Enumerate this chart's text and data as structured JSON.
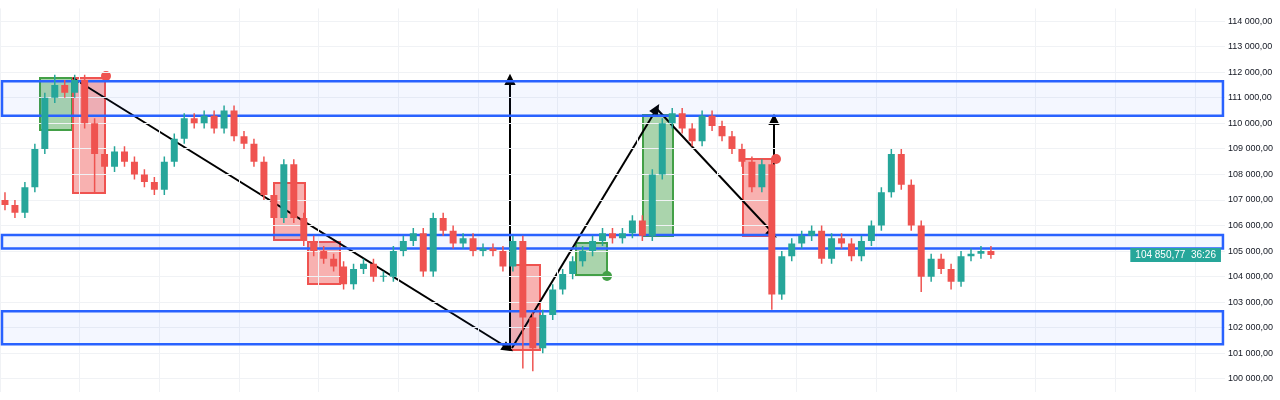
{
  "chart_data": {
    "type": "candlestick",
    "categories": [
      null,
      null,
      null,
      null,
      null,
      null,
      null,
      null,
      null,
      null,
      null,
      null,
      null,
      null,
      null,
      null,
      null,
      null,
      null,
      null,
      null,
      null,
      null,
      null,
      null,
      null,
      null,
      null,
      null,
      null,
      null,
      null,
      null,
      null,
      null,
      null,
      null,
      null,
      null,
      null,
      null,
      null,
      null,
      null,
      null,
      null,
      null,
      null,
      null,
      null,
      null,
      null,
      null,
      null,
      null,
      null,
      null,
      null,
      null,
      null,
      null,
      null,
      null,
      null,
      null,
      null,
      null,
      null,
      null,
      null,
      null,
      null,
      null,
      null,
      null,
      null,
      null,
      null,
      null,
      null,
      null,
      null,
      null,
      null,
      null,
      null,
      null,
      null,
      null,
      null,
      null,
      null,
      null,
      null,
      null,
      null,
      null,
      null,
      null,
      null,
      null,
      null,
      null,
      null,
      null,
      null,
      null,
      null,
      null,
      null,
      null,
      null,
      null,
      null,
      null,
      null,
      null,
      null,
      null,
      null,
      null,
      null,
      null
    ],
    "ohlc": [
      [
        107000,
        107300,
        106600,
        106800
      ],
      [
        106800,
        107000,
        106300,
        106500
      ],
      [
        106500,
        107700,
        106300,
        107500
      ],
      [
        107500,
        109200,
        107300,
        109000
      ],
      [
        109000,
        111200,
        108800,
        111000
      ],
      [
        111000,
        111900,
        110800,
        111500
      ],
      [
        111500,
        111700,
        111000,
        111200
      ],
      [
        111200,
        111900,
        111000,
        111700
      ],
      [
        111700,
        111900,
        109800,
        110000
      ],
      [
        110000,
        110200,
        107300,
        108800
      ],
      [
        108800,
        109000,
        108100,
        108300
      ],
      [
        108300,
        109100,
        108100,
        108900
      ],
      [
        108900,
        109100,
        108300,
        108500
      ],
      [
        108500,
        108700,
        107800,
        108000
      ],
      [
        108000,
        108200,
        107500,
        107700
      ],
      [
        107700,
        107900,
        107200,
        107400
      ],
      [
        107400,
        108700,
        107200,
        108500
      ],
      [
        108500,
        109600,
        108300,
        109400
      ],
      [
        109400,
        110400,
        109200,
        110200
      ],
      [
        110200,
        110400,
        109800,
        110000
      ],
      [
        110000,
        110500,
        109800,
        110300
      ],
      [
        110300,
        110500,
        109600,
        109800
      ],
      [
        109800,
        110700,
        109600,
        110500
      ],
      [
        110500,
        110700,
        109300,
        109500
      ],
      [
        109500,
        109700,
        109000,
        109200
      ],
      [
        109200,
        109400,
        108300,
        108500
      ],
      [
        108500,
        108700,
        107000,
        107200
      ],
      [
        107200,
        107400,
        106100,
        106300
      ],
      [
        106300,
        108600,
        106100,
        108400
      ],
      [
        108400,
        108600,
        106100,
        106300
      ],
      [
        106300,
        106500,
        105200,
        105400
      ],
      [
        105400,
        105600,
        104800,
        105000
      ],
      [
        105000,
        105200,
        104500,
        104700
      ],
      [
        104700,
        104900,
        104200,
        104400
      ],
      [
        104400,
        104600,
        103500,
        103700
      ],
      [
        103700,
        104500,
        103500,
        104300
      ],
      [
        104300,
        104700,
        104100,
        104500
      ],
      [
        104500,
        104700,
        103800,
        104000
      ],
      [
        104000,
        104200,
        103800,
        104000
      ],
      [
        104000,
        105200,
        103800,
        105000
      ],
      [
        105000,
        105600,
        104800,
        105400
      ],
      [
        105400,
        105900,
        105200,
        105700
      ],
      [
        105700,
        105900,
        104000,
        104200
      ],
      [
        104200,
        106500,
        104000,
        106300
      ],
      [
        106300,
        106500,
        105600,
        105800
      ],
      [
        105800,
        106000,
        105100,
        105300
      ],
      [
        105300,
        105700,
        105100,
        105500
      ],
      [
        105500,
        105700,
        104800,
        105000
      ],
      [
        105000,
        105300,
        104800,
        105100
      ],
      [
        105100,
        105300,
        104800,
        105000
      ],
      [
        105000,
        105200,
        104200,
        104400
      ],
      [
        104400,
        105600,
        104200,
        105400
      ],
      [
        105400,
        105600,
        100400,
        102400
      ],
      [
        102400,
        102600,
        100300,
        101200
      ],
      [
        101200,
        102700,
        101000,
        102500
      ],
      [
        102500,
        103700,
        102300,
        103500
      ],
      [
        103500,
        104300,
        103300,
        104100
      ],
      [
        104100,
        104800,
        103900,
        104600
      ],
      [
        104600,
        105200,
        104400,
        105000
      ],
      [
        105000,
        105600,
        104800,
        105400
      ],
      [
        105400,
        105900,
        105200,
        105700
      ],
      [
        105700,
        105900,
        105300,
        105500
      ],
      [
        105500,
        105900,
        105300,
        105700
      ],
      [
        105700,
        106400,
        105500,
        106200
      ],
      [
        106200,
        106400,
        105400,
        105600
      ],
      [
        105600,
        108200,
        105400,
        108000
      ],
      [
        108000,
        110200,
        107800,
        110000
      ],
      [
        110000,
        110600,
        109800,
        110400
      ],
      [
        110400,
        110600,
        109600,
        109800
      ],
      [
        109800,
        110000,
        109100,
        109300
      ],
      [
        109300,
        110500,
        109100,
        110300
      ],
      [
        110300,
        110500,
        109700,
        109900
      ],
      [
        109900,
        110100,
        109300,
        109500
      ],
      [
        109500,
        109700,
        108800,
        109000
      ],
      [
        109000,
        109200,
        108300,
        108500
      ],
      [
        108500,
        108700,
        107300,
        107500
      ],
      [
        107500,
        108600,
        107300,
        108400
      ],
      [
        108400,
        108600,
        102700,
        103300
      ],
      [
        103300,
        105000,
        103100,
        104800
      ],
      [
        104800,
        105500,
        104600,
        105300
      ],
      [
        105300,
        105800,
        105100,
        105600
      ],
      [
        105600,
        106000,
        105400,
        105800
      ],
      [
        105800,
        106000,
        104500,
        104700
      ],
      [
        104700,
        105700,
        104500,
        105500
      ],
      [
        105500,
        105700,
        105100,
        105300
      ],
      [
        105300,
        105500,
        104600,
        104800
      ],
      [
        104800,
        105600,
        104600,
        105400
      ],
      [
        105400,
        106200,
        105200,
        106000
      ],
      [
        106000,
        107500,
        105800,
        107300
      ],
      [
        107300,
        109000,
        107100,
        108800
      ],
      [
        108800,
        109000,
        107400,
        107600
      ],
      [
        107600,
        107800,
        105800,
        106000
      ],
      [
        106000,
        106200,
        103400,
        104000
      ],
      [
        104000,
        104900,
        103800,
        104700
      ],
      [
        104700,
        104900,
        104100,
        104300
      ],
      [
        104300,
        104500,
        103500,
        103800
      ],
      [
        103800,
        105000,
        103600,
        104800
      ],
      [
        104800,
        105100,
        104600,
        104900
      ],
      [
        104900,
        105200,
        104700,
        105000
      ],
      [
        105000,
        105200,
        104700,
        104850
      ],
      null,
      null,
      null,
      null,
      null,
      null,
      null,
      null,
      null,
      null,
      null,
      null,
      null,
      null,
      null,
      null,
      null,
      null,
      null,
      null,
      null,
      null,
      null
    ],
    "ylim": [
      99500,
      114500
    ],
    "yticks": [
      {
        "value": 100000,
        "label": "100 000,00"
      },
      {
        "value": 101000,
        "label": "101 000,00"
      },
      {
        "value": 102000,
        "label": "102 000,00"
      },
      {
        "value": 103000,
        "label": "103 000,00"
      },
      {
        "value": 104000,
        "label": "104 000,00"
      },
      {
        "value": 105000,
        "label": "105 000,00"
      },
      {
        "value": 106000,
        "label": "106 000,00"
      },
      {
        "value": 107000,
        "label": "107 000,00"
      },
      {
        "value": 108000,
        "label": "108 000,00"
      },
      {
        "value": 109000,
        "label": "109 000,00"
      },
      {
        "value": 110000,
        "label": "110 000,00"
      },
      {
        "value": 111000,
        "label": "111 000,00"
      },
      {
        "value": 112000,
        "label": "112 000,00"
      },
      {
        "value": 113000,
        "label": "113 000,00"
      },
      {
        "value": 114000,
        "label": "114 000,00"
      }
    ],
    "bands": [
      {
        "axis": "y",
        "from": 110300,
        "to": 111650,
        "color": "#2962ff"
      },
      {
        "axis": "y",
        "from": 101350,
        "to": 102650,
        "color": "#2962ff"
      },
      {
        "axis": "y",
        "from": 105100,
        "to": 105630,
        "color": "#2962ff"
      }
    ],
    "annotations": [
      "104 850,77",
      "36:26"
    ],
    "grid": true,
    "tick_labels": "y"
  }
}
